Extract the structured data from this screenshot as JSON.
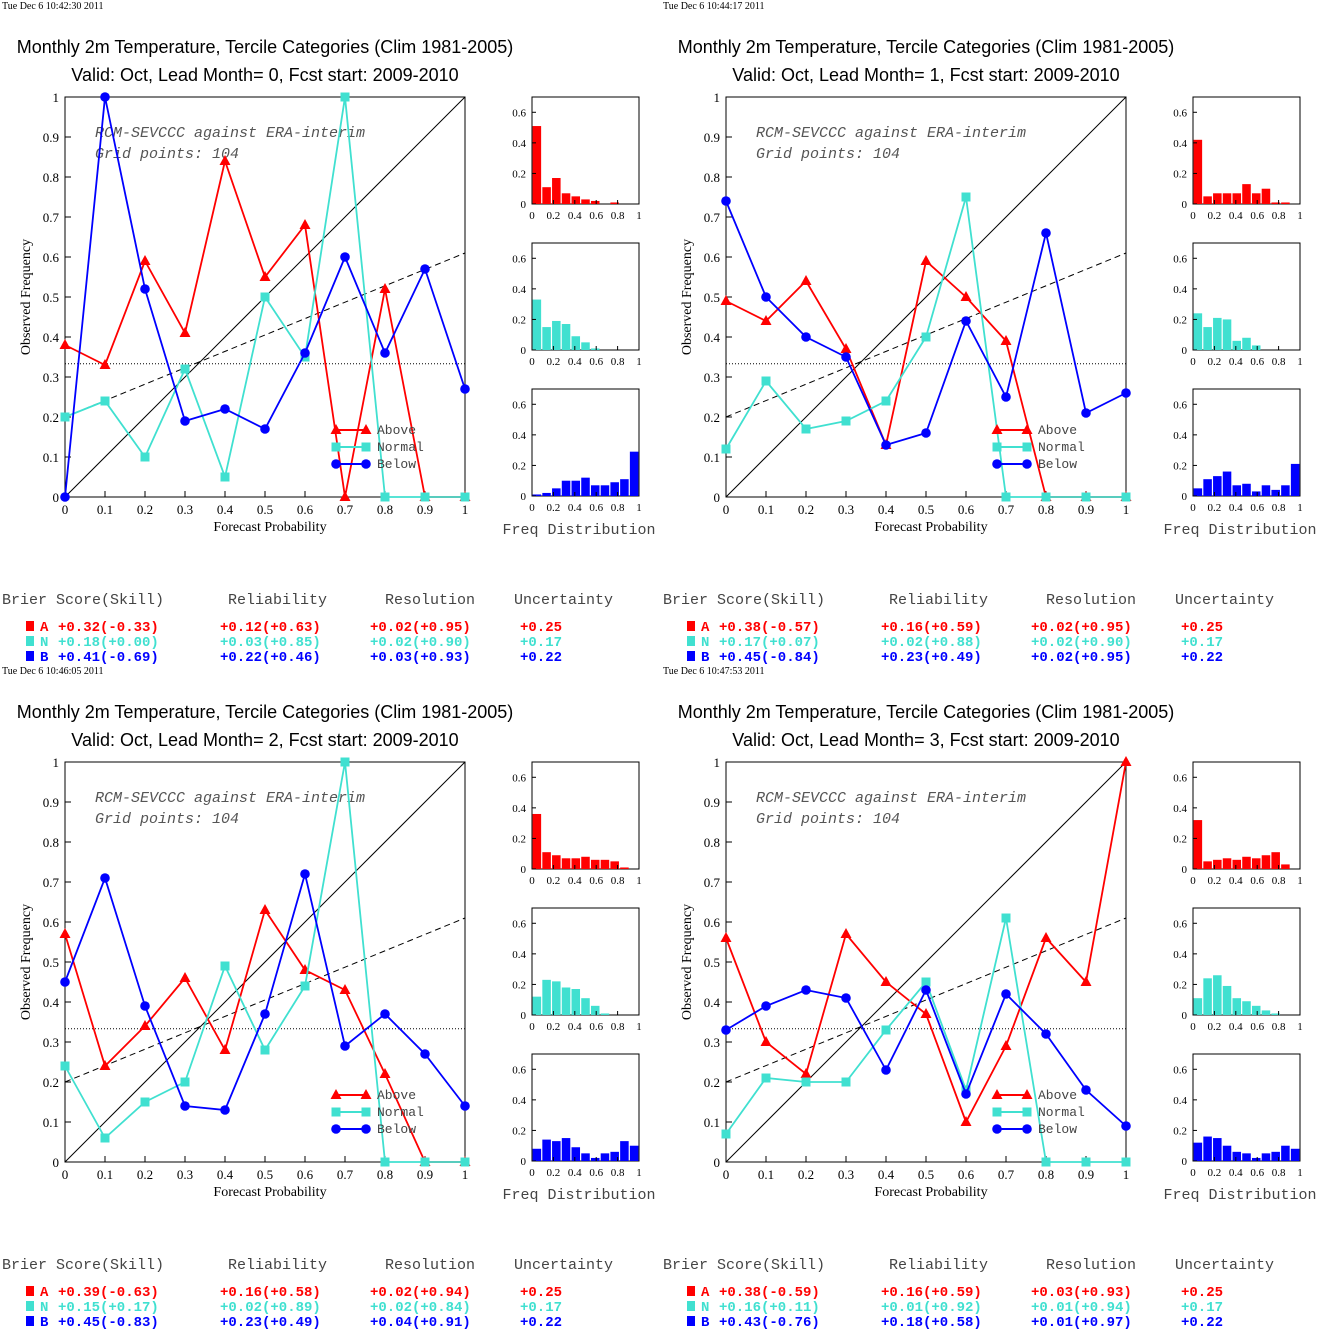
{
  "colors": {
    "above": "#ff0000",
    "normal": "#40e0d0",
    "below": "#0000ff",
    "axis": "#000000"
  },
  "common": {
    "title": "Monthly 2m Temperature, Tercile Categories (Clim 1981-2005)",
    "subtitle_prefix": "Valid: Oct, Lead Month= ",
    "subtitle_suffix": ", Fcst start: 2009-2010",
    "annotation_line1": "RCM-SEVCCC against ERA-interim",
    "annotation_line2": "Grid points:  104",
    "xlabel": "Forecast Probability",
    "ylabel": "Observed Frequency",
    "hist_label": "Freq Distribution",
    "legend": [
      "Above",
      "Normal",
      "Below"
    ],
    "score_headers": [
      "Brier Score(Skill)",
      "Reliability",
      "Resolution",
      "Uncertainty"
    ],
    "category_letters": [
      "A",
      "N",
      "B"
    ],
    "x_ticks": [
      "0",
      "0.1",
      "0.2",
      "0.3",
      "0.4",
      "0.5",
      "0.6",
      "0.7",
      "0.8",
      "0.9",
      "1"
    ],
    "y_ticks": [
      "0",
      "0.1",
      "0.2",
      "0.3",
      "0.4",
      "0.5",
      "0.6",
      "0.7",
      "0.8",
      "0.9",
      "1"
    ],
    "hist_x_ticks": [
      "0",
      "0.2",
      "0.4",
      "0.6",
      "0.8",
      "1"
    ],
    "hist_y_ticks": [
      "0",
      "0.2",
      "0.4",
      "0.6"
    ]
  },
  "chart_data": [
    {
      "type": "line",
      "timestamp": "Tue Dec  6 10:42:30 2011",
      "lead": "0",
      "x": [
        0,
        0.1,
        0.2,
        0.3,
        0.4,
        0.5,
        0.6,
        0.7,
        0.8,
        0.9,
        1
      ],
      "xlim": [
        0,
        1
      ],
      "ylim": [
        0,
        1
      ],
      "climatology": 0.333,
      "trend": [
        0.2,
        0.61
      ],
      "series": [
        {
          "name": "Above",
          "marker": "triangle",
          "values": [
            0.38,
            0.33,
            0.59,
            0.41,
            0.84,
            0.55,
            0.68,
            0,
            0.52,
            0,
            0
          ]
        },
        {
          "name": "Normal",
          "marker": "square",
          "values": [
            0.2,
            0.24,
            0.1,
            0.32,
            0.05,
            0.5,
            0.35,
            1.0,
            0,
            0,
            0
          ]
        },
        {
          "name": "Below",
          "marker": "circle",
          "values": [
            0,
            1.0,
            0.52,
            0.19,
            0.22,
            0.17,
            0.36,
            0.6,
            0.36,
            0.57,
            0.27
          ]
        }
      ],
      "histograms": [
        [
          0.51,
          0.11,
          0.17,
          0.07,
          0.05,
          0.03,
          0.02,
          0,
          0.01,
          0,
          0
        ],
        [
          0.33,
          0.15,
          0.19,
          0.17,
          0.09,
          0.05,
          0.01,
          0,
          0,
          0,
          0
        ],
        [
          0.01,
          0.02,
          0.05,
          0.1,
          0.1,
          0.12,
          0.07,
          0.07,
          0.09,
          0.11,
          0.29
        ]
      ],
      "scores": [
        [
          "+0.32(-0.33)",
          "+0.12(+0.63)",
          "+0.02(+0.95)",
          "+0.25"
        ],
        [
          "+0.18(+0.00)",
          "+0.03(+0.85)",
          "+0.02(+0.90)",
          "+0.17"
        ],
        [
          "+0.41(-0.69)",
          "+0.22(+0.46)",
          "+0.03(+0.93)",
          "+0.22"
        ]
      ]
    },
    {
      "type": "line",
      "timestamp": "Tue Dec  6 10:44:17 2011",
      "lead": "1",
      "x": [
        0,
        0.1,
        0.2,
        0.3,
        0.4,
        0.5,
        0.6,
        0.7,
        0.8,
        0.9,
        1
      ],
      "xlim": [
        0,
        1
      ],
      "ylim": [
        0,
        1
      ],
      "climatology": 0.333,
      "trend": [
        0.2,
        0.61
      ],
      "series": [
        {
          "name": "Above",
          "marker": "triangle",
          "values": [
            0.49,
            0.44,
            0.54,
            0.37,
            0.13,
            0.59,
            0.5,
            0.39,
            0,
            0,
            0
          ]
        },
        {
          "name": "Normal",
          "marker": "square",
          "values": [
            0.12,
            0.29,
            0.17,
            0.19,
            0.24,
            0.4,
            0.75,
            0,
            0,
            0,
            0
          ]
        },
        {
          "name": "Below",
          "marker": "circle",
          "values": [
            0.74,
            0.5,
            0.4,
            0.35,
            0.13,
            0.16,
            0.44,
            0.25,
            0.66,
            0.21,
            0.26
          ]
        }
      ],
      "histograms": [
        [
          0.42,
          0.05,
          0.07,
          0.07,
          0.07,
          0.13,
          0.07,
          0.1,
          0.01,
          0.01,
          0
        ],
        [
          0.24,
          0.15,
          0.21,
          0.2,
          0.06,
          0.08,
          0.03,
          0,
          0,
          0,
          0
        ],
        [
          0.05,
          0.11,
          0.13,
          0.16,
          0.07,
          0.08,
          0.03,
          0.07,
          0.04,
          0.07,
          0.21
        ]
      ],
      "scores": [
        [
          "+0.38(-0.57)",
          "+0.16(+0.59)",
          "+0.02(+0.95)",
          "+0.25"
        ],
        [
          "+0.17(+0.07)",
          "+0.02(+0.88)",
          "+0.02(+0.90)",
          "+0.17"
        ],
        [
          "+0.45(-0.84)",
          "+0.23(+0.49)",
          "+0.02(+0.95)",
          "+0.22"
        ]
      ]
    },
    {
      "type": "line",
      "timestamp": "Tue Dec  6 10:46:05 2011",
      "lead": "2",
      "x": [
        0,
        0.1,
        0.2,
        0.3,
        0.4,
        0.5,
        0.6,
        0.7,
        0.8,
        0.9,
        1
      ],
      "xlim": [
        0,
        1
      ],
      "ylim": [
        0,
        1
      ],
      "climatology": 0.333,
      "trend": [
        0.2,
        0.61
      ],
      "series": [
        {
          "name": "Above",
          "marker": "triangle",
          "values": [
            0.57,
            0.24,
            0.34,
            0.46,
            0.28,
            0.63,
            0.48,
            0.43,
            0.22,
            0,
            0
          ]
        },
        {
          "name": "Normal",
          "marker": "square",
          "values": [
            0.24,
            0.06,
            0.15,
            0.2,
            0.49,
            0.28,
            0.44,
            1.0,
            0,
            0,
            0
          ]
        },
        {
          "name": "Below",
          "marker": "circle",
          "values": [
            0.45,
            0.71,
            0.39,
            0.14,
            0.13,
            0.37,
            0.72,
            0.29,
            0.37,
            0.27,
            0.14
          ]
        }
      ],
      "histograms": [
        [
          0.36,
          0.11,
          0.09,
          0.07,
          0.07,
          0.08,
          0.06,
          0.06,
          0.05,
          0.01,
          0
        ],
        [
          0.12,
          0.23,
          0.22,
          0.18,
          0.17,
          0.11,
          0.06,
          0.01,
          0,
          0,
          0
        ],
        [
          0.08,
          0.14,
          0.13,
          0.15,
          0.09,
          0.05,
          0.02,
          0.05,
          0.06,
          0.13,
          0.1
        ]
      ],
      "scores": [
        [
          "+0.39(-0.63)",
          "+0.16(+0.58)",
          "+0.02(+0.94)",
          "+0.25"
        ],
        [
          "+0.15(+0.17)",
          "+0.02(+0.89)",
          "+0.02(+0.84)",
          "+0.17"
        ],
        [
          "+0.45(-0.83)",
          "+0.23(+0.49)",
          "+0.04(+0.91)",
          "+0.22"
        ]
      ]
    },
    {
      "type": "line",
      "timestamp": "Tue Dec  6 10:47:53 2011",
      "lead": "3",
      "x": [
        0,
        0.1,
        0.2,
        0.3,
        0.4,
        0.5,
        0.6,
        0.7,
        0.8,
        0.9,
        1
      ],
      "xlim": [
        0,
        1
      ],
      "ylim": [
        0,
        1
      ],
      "climatology": 0.333,
      "trend": [
        0.2,
        0.61
      ],
      "series": [
        {
          "name": "Above",
          "marker": "triangle",
          "values": [
            0.56,
            0.3,
            0.22,
            0.57,
            0.45,
            0.37,
            0.1,
            0.29,
            0.56,
            0.45,
            1.0
          ]
        },
        {
          "name": "Normal",
          "marker": "square",
          "values": [
            0.07,
            0.21,
            0.2,
            0.2,
            0.33,
            0.45,
            0.18,
            0.61,
            0,
            0,
            0
          ]
        },
        {
          "name": "Below",
          "marker": "circle",
          "values": [
            0.33,
            0.39,
            0.43,
            0.41,
            0.23,
            0.43,
            0.17,
            0.42,
            0.32,
            0.18,
            0.09
          ]
        }
      ],
      "histograms": [
        [
          0.32,
          0.05,
          0.06,
          0.07,
          0.06,
          0.08,
          0.07,
          0.09,
          0.11,
          0.03,
          0
        ],
        [
          0.11,
          0.24,
          0.26,
          0.19,
          0.11,
          0.09,
          0.06,
          0.03,
          0.01,
          0,
          0
        ],
        [
          0.12,
          0.16,
          0.15,
          0.1,
          0.06,
          0.05,
          0.02,
          0.05,
          0.06,
          0.1,
          0.08
        ]
      ],
      "scores": [
        [
          "+0.38(-0.59)",
          "+0.16(+0.59)",
          "+0.03(+0.93)",
          "+0.25"
        ],
        [
          "+0.16(+0.11)",
          "+0.01(+0.92)",
          "+0.01(+0.94)",
          "+0.17"
        ],
        [
          "+0.43(-0.76)",
          "+0.18(+0.58)",
          "+0.01(+0.97)",
          "+0.22"
        ]
      ]
    }
  ]
}
